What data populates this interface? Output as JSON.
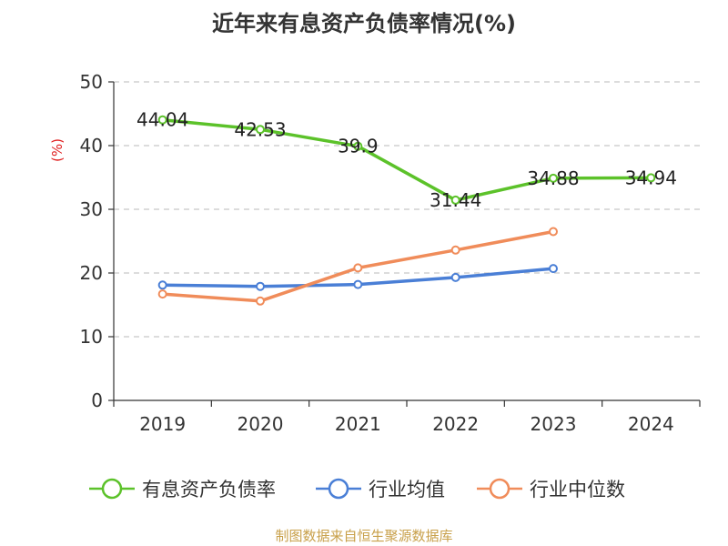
{
  "chart_data": {
    "type": "line",
    "title": "近年来有息资产负债率情况(%)",
    "ylabel": "(%)",
    "xlabel": "",
    "categories": [
      "2019",
      "2020",
      "2021",
      "2022",
      "2023",
      "2024"
    ],
    "ylim": [
      0,
      50
    ],
    "yticks": [
      0,
      10,
      20,
      30,
      40,
      50
    ],
    "grid": "horizontal dashed",
    "legend_position": "bottom",
    "series": [
      {
        "name": "有息资产负债率",
        "color": "#5cc22a",
        "values": [
          44.04,
          42.53,
          39.9,
          31.44,
          34.88,
          34.94
        ],
        "data_labels": [
          "44.04",
          "42.53",
          "39.9",
          "31.44",
          "34.88",
          "34.94"
        ]
      },
      {
        "name": "行业均值",
        "color": "#4a7fd6",
        "values": [
          18.1,
          17.9,
          18.2,
          19.3,
          20.7,
          null
        ]
      },
      {
        "name": "行业中位数",
        "color": "#f08c5a",
        "values": [
          16.7,
          15.6,
          20.8,
          23.6,
          26.5,
          null
        ]
      }
    ]
  },
  "footer": {
    "source": "制图数据来自恒生聚源数据库"
  }
}
